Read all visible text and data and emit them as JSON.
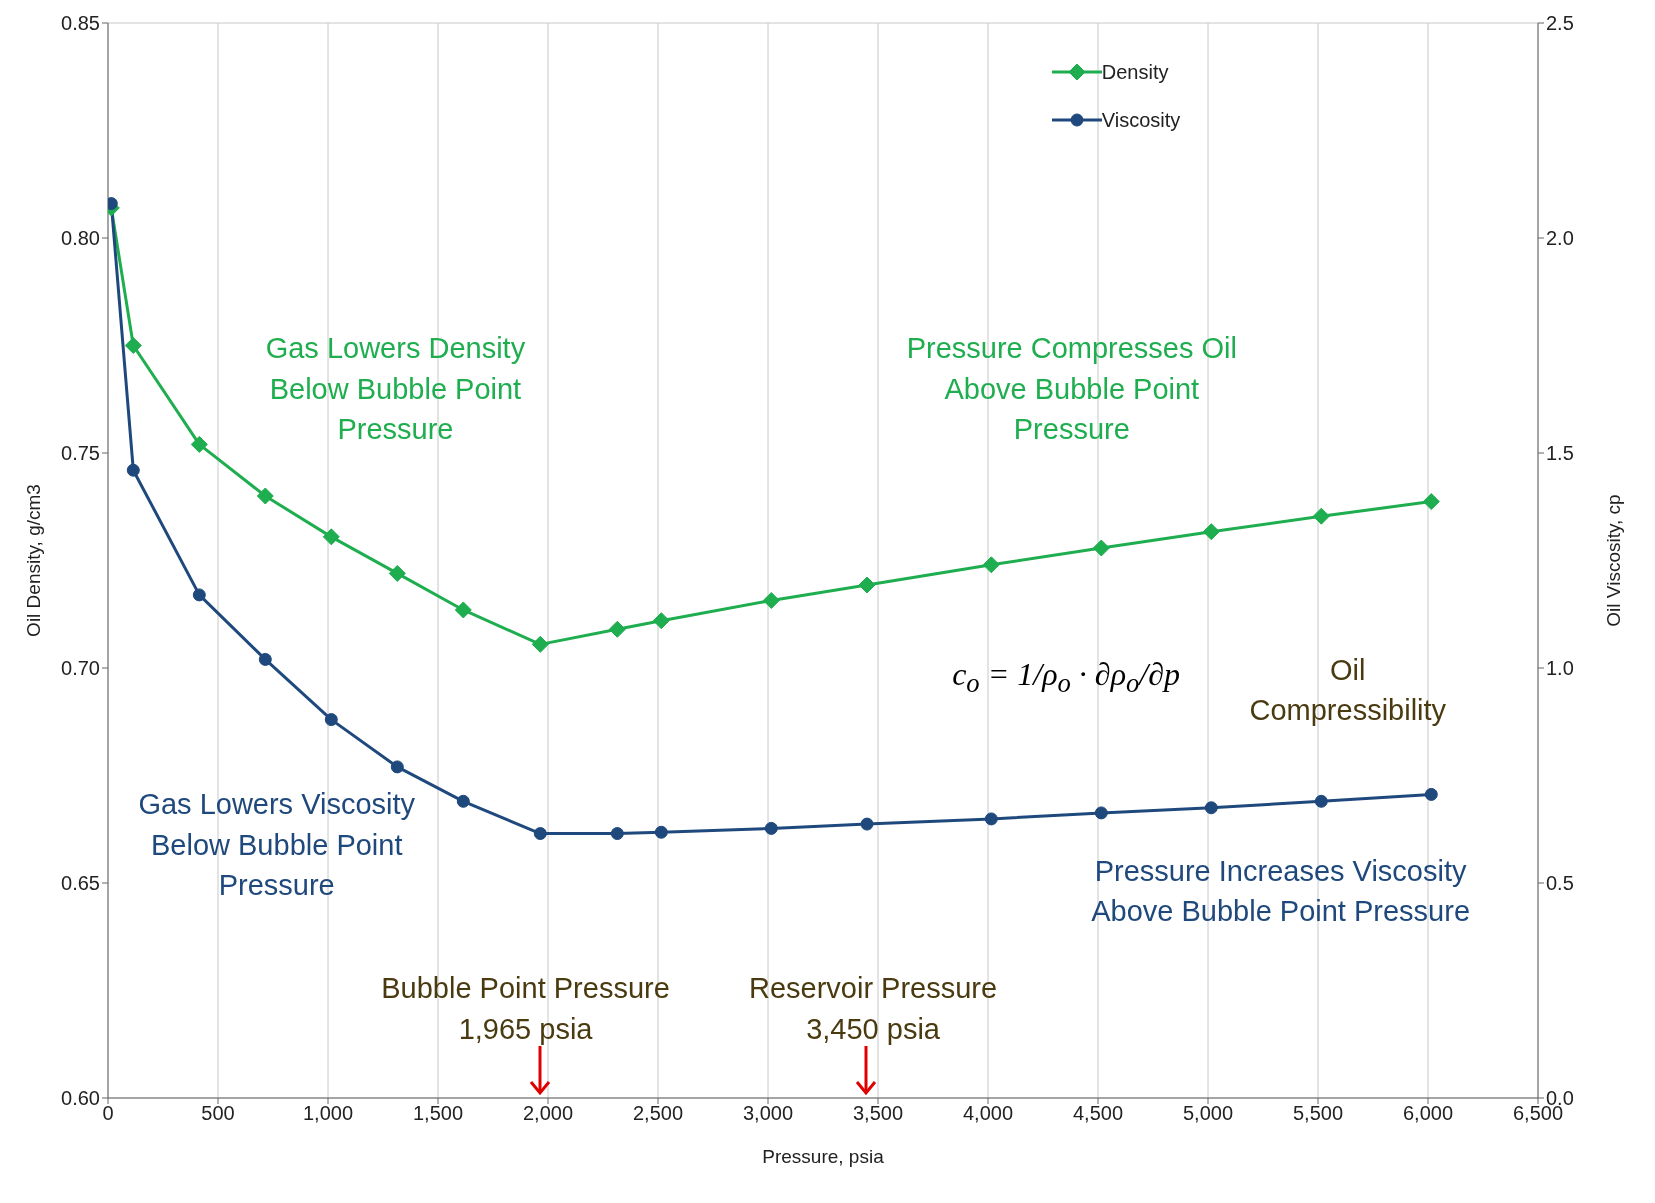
{
  "chart_data": {
    "type": "line",
    "xlabel": "Pressure, psia",
    "ylabel": "Oil Density, g/cm3",
    "y2label": "Oil Viscosity, cp",
    "x": [
      15,
      115,
      415,
      715,
      1015,
      1315,
      1615,
      1965,
      2315,
      2515,
      3015,
      3450,
      4015,
      4515,
      5015,
      5515,
      6015
    ],
    "series": [
      {
        "name": "Density",
        "color": "#1fae4f",
        "marker": "diamond",
        "values": [
          0.807,
          0.775,
          0.752,
          0.74,
          0.7305,
          0.722,
          0.7135,
          0.7055,
          0.709,
          0.711,
          0.7157,
          0.7193,
          0.724,
          0.7279,
          0.7317,
          0.7353,
          0.7387
        ]
      },
      {
        "name": "Viscosity",
        "color": "#1f497d",
        "marker": "circle",
        "axis": "y2",
        "values": [
          2.08,
          1.46,
          1.17,
          1.02,
          0.88,
          0.77,
          0.69,
          0.615,
          0.615,
          0.618,
          0.627,
          0.637,
          0.649,
          0.663,
          0.675,
          0.69,
          0.706
        ]
      }
    ],
    "xlim": [
      0,
      6500
    ],
    "xticks": [
      {
        "value": 0,
        "label": "0"
      },
      {
        "value": 500,
        "label": "500"
      },
      {
        "value": 1000,
        "label": "1,000"
      },
      {
        "value": 1500,
        "label": "1,500"
      },
      {
        "value": 2000,
        "label": "2,000"
      },
      {
        "value": 2500,
        "label": "2,500"
      },
      {
        "value": 3000,
        "label": "3,000"
      },
      {
        "value": 3500,
        "label": "3,500"
      },
      {
        "value": 4000,
        "label": "4,000"
      },
      {
        "value": 4500,
        "label": "4,500"
      },
      {
        "value": 5000,
        "label": "5,000"
      },
      {
        "value": 5500,
        "label": "5,500"
      },
      {
        "value": 6000,
        "label": "6,000"
      },
      {
        "value": 6500,
        "label": "6,500"
      }
    ],
    "ylim": [
      0.6,
      0.85
    ],
    "yticks": [
      {
        "value": 0.6,
        "label": "0.60"
      },
      {
        "value": 0.65,
        "label": "0.65"
      },
      {
        "value": 0.7,
        "label": "0.70"
      },
      {
        "value": 0.75,
        "label": "0.75"
      },
      {
        "value": 0.8,
        "label": "0.80"
      },
      {
        "value": 0.85,
        "label": "0.85"
      }
    ],
    "y2lim": [
      0,
      2.5
    ],
    "y2ticks": [
      {
        "value": 0,
        "label": "0.0"
      },
      {
        "value": 0.5,
        "label": "0.5"
      },
      {
        "value": 1,
        "label": "1.0"
      },
      {
        "value": 1.5,
        "label": "1.5"
      },
      {
        "value": 2,
        "label": "2.0"
      },
      {
        "value": 2.5,
        "label": "2.5"
      }
    ],
    "grid": true,
    "legend": "top right",
    "line_style": "solid",
    "annotations": [
      "Gas Lowers Density\nBelow Bubble Point\nPressure",
      "Pressure Compresses Oil\nAbove Bubble Point\nPressure",
      "c$_{o}$ = 1/ρ$_{o}$ · ∂ρ$_{o}$/∂p",
      "Oil\nCompressibility",
      "Gas Lowers Viscosity\nBelow Bubble Point\nPressure",
      "Pressure Increases Viscosity\nAbove Bubble Point Pressure",
      "Bubble Point Pressure\n1,965 psia",
      "Reservoir Pressure\n3,450 psia"
    ]
  }
}
